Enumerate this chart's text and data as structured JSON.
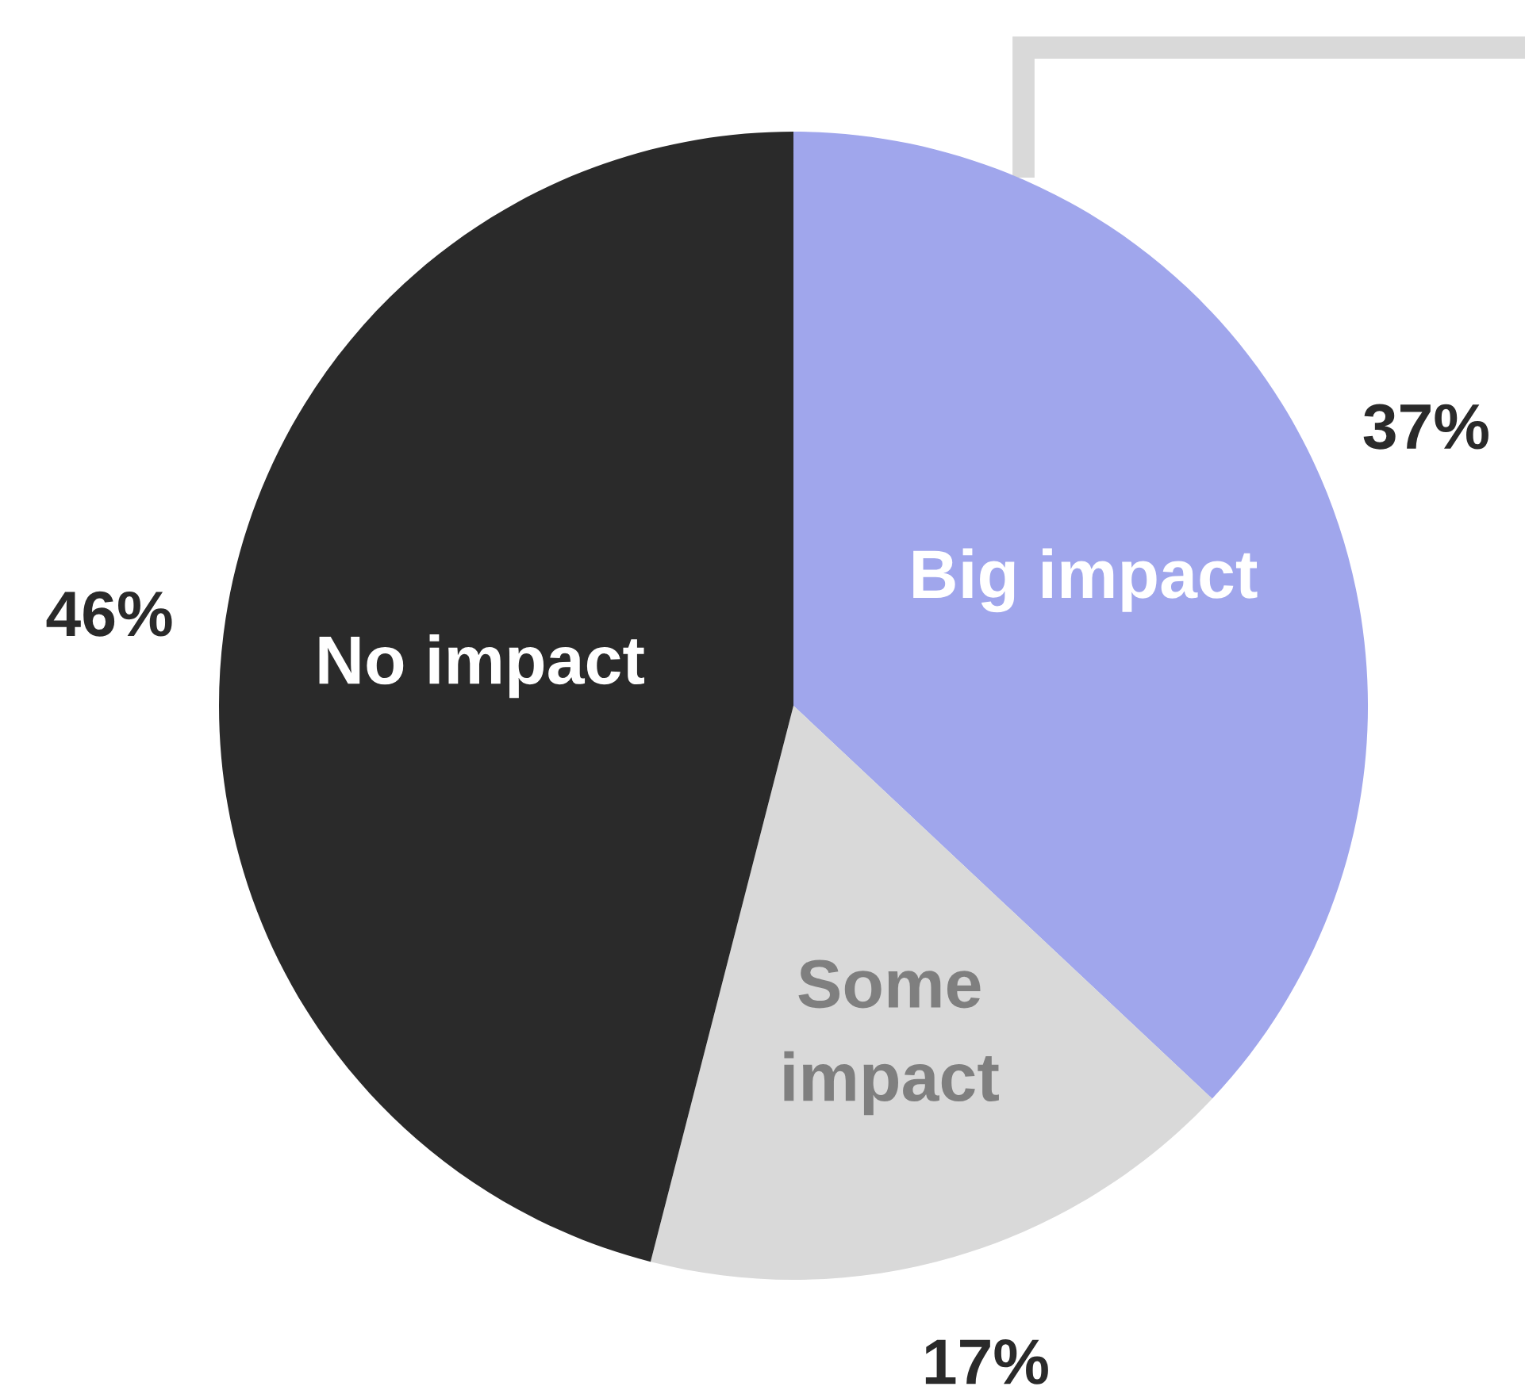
{
  "chart_data": {
    "type": "pie",
    "categories": [
      "Big impact",
      "Some impact",
      "No impact"
    ],
    "values": [
      37,
      17,
      46
    ],
    "value_labels": [
      "37%",
      "17%",
      "46%"
    ],
    "colors": [
      "#a0a6ec",
      "#d9d9d9",
      "#2a2a2a"
    ]
  }
}
